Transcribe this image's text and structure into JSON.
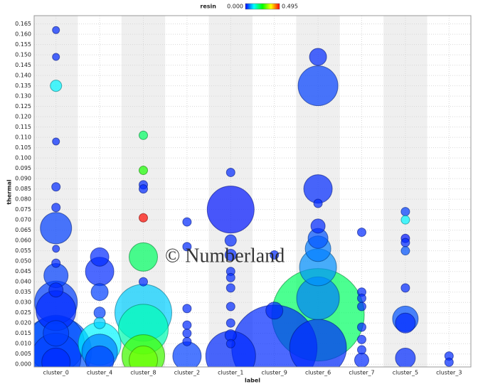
{
  "chart_data": {
    "type": "scatter",
    "xlabel": "label",
    "ylabel": "thermal",
    "watermark": "© Numberland",
    "categories": [
      "cluster_0",
      "cluster_4",
      "cluster_8",
      "cluster_2",
      "cluster_1",
      "cluster_9",
      "cluster_6",
      "cluster_7",
      "cluster_5",
      "cluster_3"
    ],
    "color_legend": {
      "name": "resin",
      "range": [
        0,
        0.495
      ],
      "ticks": [
        {
          "value": 0,
          "label": "0.000"
        },
        {
          "value": 0.495,
          "label": "0.495"
        }
      ]
    },
    "ylim": [
      -0.0013,
      0.169
    ],
    "yticks": [
      {
        "value": 0,
        "label": "0.000"
      },
      {
        "value": 0.005,
        "label": "0.005"
      },
      {
        "value": 0.01,
        "label": "0.010"
      },
      {
        "value": 0.015,
        "label": "0.015"
      },
      {
        "value": 0.02,
        "label": "0.020"
      },
      {
        "value": 0.025,
        "label": "0.025"
      },
      {
        "value": 0.03,
        "label": "0.030"
      },
      {
        "value": 0.035,
        "label": "0.035"
      },
      {
        "value": 0.04,
        "label": "0.040"
      },
      {
        "value": 0.045,
        "label": "0.045"
      },
      {
        "value": 0.05,
        "label": "0.050"
      },
      {
        "value": 0.055,
        "label": "0.055"
      },
      {
        "value": 0.06,
        "label": "0.060"
      },
      {
        "value": 0.065,
        "label": "0.065"
      },
      {
        "value": 0.07,
        "label": "0.070"
      },
      {
        "value": 0.075,
        "label": "0.075"
      },
      {
        "value": 0.08,
        "label": "0.080"
      },
      {
        "value": 0.085,
        "label": "0.085"
      },
      {
        "value": 0.09,
        "label": "0.090"
      },
      {
        "value": 0.095,
        "label": "0.095"
      },
      {
        "value": 0.1,
        "label": "0.100"
      },
      {
        "value": 0.105,
        "label": "0.105"
      },
      {
        "value": 0.11,
        "label": "0.110"
      },
      {
        "value": 0.115,
        "label": "0.115"
      },
      {
        "value": 0.12,
        "label": "0.120"
      },
      {
        "value": 0.125,
        "label": "0.125"
      },
      {
        "value": 0.13,
        "label": "0.130"
      },
      {
        "value": 0.135,
        "label": "0.135"
      },
      {
        "value": 0.14,
        "label": "0.140"
      },
      {
        "value": 0.145,
        "label": "0.145"
      },
      {
        "value": 0.15,
        "label": "0.150"
      },
      {
        "value": 0.155,
        "label": "0.155"
      },
      {
        "value": 0.16,
        "label": "0.160"
      },
      {
        "value": 0.165,
        "label": "0.165"
      }
    ],
    "grid": true,
    "points": [
      {
        "x": "cluster_0",
        "y": 0.162,
        "size": 5,
        "resin": 0.02
      },
      {
        "x": "cluster_0",
        "y": 0.149,
        "size": 5,
        "resin": 0.02
      },
      {
        "x": "cluster_0",
        "y": 0.135,
        "size": 8,
        "resin": 0.12
      },
      {
        "x": "cluster_0",
        "y": 0.108,
        "size": 5,
        "resin": 0.02
      },
      {
        "x": "cluster_0",
        "y": 0.086,
        "size": 6,
        "resin": 0.02
      },
      {
        "x": "cluster_0",
        "y": 0.076,
        "size": 6,
        "resin": 0.02
      },
      {
        "x": "cluster_0",
        "y": 0.066,
        "size": 22,
        "resin": 0.03
      },
      {
        "x": "cluster_0",
        "y": 0.056,
        "size": 5,
        "resin": 0.02
      },
      {
        "x": "cluster_0",
        "y": 0.049,
        "size": 6,
        "resin": 0.02
      },
      {
        "x": "cluster_0",
        "y": 0.043,
        "size": 17,
        "resin": 0.03
      },
      {
        "x": "cluster_0",
        "y": 0.036,
        "size": 10,
        "resin": 0.02
      },
      {
        "x": "cluster_0",
        "y": 0.03,
        "size": 30,
        "resin": 0.03
      },
      {
        "x": "cluster_0",
        "y": 0.026,
        "size": 28,
        "resin": 0.02
      },
      {
        "x": "cluster_0",
        "y": 0.015,
        "size": 18,
        "resin": 0.03
      },
      {
        "x": "cluster_0",
        "y": 0.01,
        "size": 40,
        "resin": 0.04
      },
      {
        "x": "cluster_0",
        "y": 0.006,
        "size": 50,
        "resin": 0.04
      },
      {
        "x": "cluster_0",
        "y": 0.003,
        "size": 35,
        "resin": 0.03
      },
      {
        "x": "cluster_0",
        "y": 0.001,
        "size": 20,
        "resin": 0.02
      },
      {
        "x": "cluster_4",
        "y": 0.052,
        "size": 13,
        "resin": 0.02
      },
      {
        "x": "cluster_4",
        "y": 0.045,
        "size": 20,
        "resin": 0.02
      },
      {
        "x": "cluster_4",
        "y": 0.035,
        "size": 12,
        "resin": 0.03
      },
      {
        "x": "cluster_4",
        "y": 0.025,
        "size": 8,
        "resin": 0.03
      },
      {
        "x": "cluster_4",
        "y": 0.02,
        "size": 8,
        "resin": 0.1
      },
      {
        "x": "cluster_4",
        "y": 0.01,
        "size": 30,
        "resin": 0.12
      },
      {
        "x": "cluster_4",
        "y": 0.006,
        "size": 25,
        "resin": 0.06
      },
      {
        "x": "cluster_4",
        "y": 0.002,
        "size": 20,
        "resin": 0.03
      },
      {
        "x": "cluster_8",
        "y": 0.111,
        "size": 6,
        "resin": 0.2
      },
      {
        "x": "cluster_8",
        "y": 0.094,
        "size": 6,
        "resin": 0.26
      },
      {
        "x": "cluster_8",
        "y": 0.087,
        "size": 6,
        "resin": 0.02
      },
      {
        "x": "cluster_8",
        "y": 0.085,
        "size": 6,
        "resin": 0.02
      },
      {
        "x": "cluster_8",
        "y": 0.071,
        "size": 6,
        "resin": 0.49
      },
      {
        "x": "cluster_8",
        "y": 0.052,
        "size": 20,
        "resin": 0.2
      },
      {
        "x": "cluster_8",
        "y": 0.04,
        "size": 6,
        "resin": 0.02
      },
      {
        "x": "cluster_8",
        "y": 0.025,
        "size": 40,
        "resin": 0.1
      },
      {
        "x": "cluster_8",
        "y": 0.017,
        "size": 35,
        "resin": 0.16
      },
      {
        "x": "cluster_8",
        "y": 0.004,
        "size": 30,
        "resin": 0.28
      },
      {
        "x": "cluster_8",
        "y": 0.002,
        "size": 20,
        "resin": 0.3
      },
      {
        "x": "cluster_2",
        "y": 0.069,
        "size": 6,
        "resin": 0.02
      },
      {
        "x": "cluster_2",
        "y": 0.057,
        "size": 6,
        "resin": 0.02
      },
      {
        "x": "cluster_2",
        "y": 0.027,
        "size": 6,
        "resin": 0.02
      },
      {
        "x": "cluster_2",
        "y": 0.019,
        "size": 6,
        "resin": 0.02
      },
      {
        "x": "cluster_2",
        "y": 0.015,
        "size": 6,
        "resin": 0.02
      },
      {
        "x": "cluster_2",
        "y": 0.011,
        "size": 6,
        "resin": 0.02
      },
      {
        "x": "cluster_2",
        "y": 0.004,
        "size": 20,
        "resin": 0.03
      },
      {
        "x": "cluster_1",
        "y": 0.093,
        "size": 6,
        "resin": 0.02
      },
      {
        "x": "cluster_1",
        "y": 0.075,
        "size": 33,
        "resin": 0.01
      },
      {
        "x": "cluster_1",
        "y": 0.06,
        "size": 8,
        "resin": 0.02
      },
      {
        "x": "cluster_1",
        "y": 0.053,
        "size": 8,
        "resin": 0.02
      },
      {
        "x": "cluster_1",
        "y": 0.045,
        "size": 6,
        "resin": 0.02
      },
      {
        "x": "cluster_1",
        "y": 0.042,
        "size": 6,
        "resin": 0.02
      },
      {
        "x": "cluster_1",
        "y": 0.037,
        "size": 6,
        "resin": 0.02
      },
      {
        "x": "cluster_1",
        "y": 0.028,
        "size": 6,
        "resin": 0.02
      },
      {
        "x": "cluster_1",
        "y": 0.02,
        "size": 6,
        "resin": 0.02
      },
      {
        "x": "cluster_1",
        "y": 0.014,
        "size": 8,
        "resin": 0.02
      },
      {
        "x": "cluster_1",
        "y": 0.01,
        "size": 6,
        "resin": 0.02
      },
      {
        "x": "cluster_1",
        "y": 0.004,
        "size": 35,
        "resin": 0.02
      },
      {
        "x": "cluster_9",
        "y": 0.053,
        "size": 6,
        "resin": 0.02
      },
      {
        "x": "cluster_9",
        "y": 0.026,
        "size": 12,
        "resin": 0.02
      },
      {
        "x": "cluster_9",
        "y": 0.008,
        "size": 60,
        "resin": 0.02
      },
      {
        "x": "cluster_6",
        "y": 0.149,
        "size": 12,
        "resin": 0.02
      },
      {
        "x": "cluster_6",
        "y": 0.135,
        "size": 28,
        "resin": 0.03
      },
      {
        "x": "cluster_6",
        "y": 0.085,
        "size": 20,
        "resin": 0.02
      },
      {
        "x": "cluster_6",
        "y": 0.078,
        "size": 6,
        "resin": 0.02
      },
      {
        "x": "cluster_6",
        "y": 0.067,
        "size": 10,
        "resin": 0.02
      },
      {
        "x": "cluster_6",
        "y": 0.061,
        "size": 14,
        "resin": 0.04
      },
      {
        "x": "cluster_6",
        "y": 0.056,
        "size": 18,
        "resin": 0.06
      },
      {
        "x": "cluster_6",
        "y": 0.047,
        "size": 26,
        "resin": 0.07
      },
      {
        "x": "cluster_6",
        "y": 0.024,
        "size": 65,
        "resin": 0.2
      },
      {
        "x": "cluster_6",
        "y": 0.032,
        "size": 30,
        "resin": 0.06
      },
      {
        "x": "cluster_6",
        "y": 0.008,
        "size": 40,
        "resin": 0.02
      },
      {
        "x": "cluster_7",
        "y": 0.064,
        "size": 6,
        "resin": 0.02
      },
      {
        "x": "cluster_7",
        "y": 0.035,
        "size": 6,
        "resin": 0.02
      },
      {
        "x": "cluster_7",
        "y": 0.032,
        "size": 6,
        "resin": 0.02
      },
      {
        "x": "cluster_7",
        "y": 0.028,
        "size": 6,
        "resin": 0.02
      },
      {
        "x": "cluster_7",
        "y": 0.018,
        "size": 6,
        "resin": 0.02
      },
      {
        "x": "cluster_7",
        "y": 0.012,
        "size": 6,
        "resin": 0.02
      },
      {
        "x": "cluster_7",
        "y": 0.007,
        "size": 6,
        "resin": 0.02
      },
      {
        "x": "cluster_7",
        "y": 0.002,
        "size": 10,
        "resin": 0.02
      },
      {
        "x": "cluster_5",
        "y": 0.074,
        "size": 6,
        "resin": 0.03
      },
      {
        "x": "cluster_5",
        "y": 0.07,
        "size": 6,
        "resin": 0.12
      },
      {
        "x": "cluster_5",
        "y": 0.061,
        "size": 6,
        "resin": 0.01
      },
      {
        "x": "cluster_5",
        "y": 0.059,
        "size": 6,
        "resin": 0.02
      },
      {
        "x": "cluster_5",
        "y": 0.055,
        "size": 6,
        "resin": 0.04
      },
      {
        "x": "cluster_5",
        "y": 0.037,
        "size": 6,
        "resin": 0.02
      },
      {
        "x": "cluster_5",
        "y": 0.022,
        "size": 18,
        "resin": 0.04
      },
      {
        "x": "cluster_5",
        "y": 0.02,
        "size": 14,
        "resin": 0.02
      },
      {
        "x": "cluster_5",
        "y": 0.003,
        "size": 14,
        "resin": 0.02
      },
      {
        "x": "cluster_3",
        "y": 0.004,
        "size": 6,
        "resin": 0.02
      },
      {
        "x": "cluster_3",
        "y": 0.001,
        "size": 6,
        "resin": 0.02
      }
    ]
  }
}
